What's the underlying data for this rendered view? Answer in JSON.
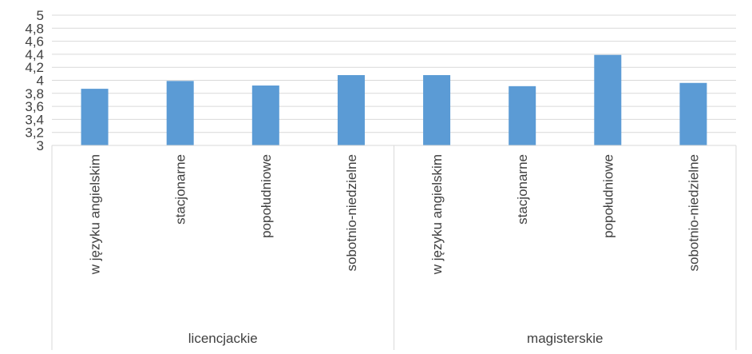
{
  "chart_data": {
    "type": "bar",
    "title": "",
    "xlabel": "",
    "ylabel": "",
    "ylim": [
      3,
      5
    ],
    "yticks": [
      "3",
      "3,2",
      "3,4",
      "3,6",
      "3,8",
      "4",
      "4,2",
      "4,4",
      "4,6",
      "4,8",
      "5"
    ],
    "grid": true,
    "legend": "none",
    "bar_color": "#5B9BD5",
    "groups": [
      {
        "label": "licencjackie",
        "categories": [
          "w języku angielskim",
          "stacjonarne",
          "popołudniowe",
          "sobotnio-niedzielne"
        ]
      },
      {
        "label": "magisterskie",
        "categories": [
          "w języku angielskim",
          "stacjonarne",
          "popołudniowe",
          "sobotnio-niedzielne"
        ]
      }
    ],
    "categories": [
      "w języku angielskim",
      "stacjonarne",
      "popołudniowe",
      "sobotnio-niedzielne",
      "w języku angielskim",
      "stacjonarne",
      "popołudniowe",
      "sobotnio-niedzielne"
    ],
    "values": [
      3.87,
      3.99,
      3.92,
      4.08,
      4.08,
      3.91,
      4.39,
      3.96
    ]
  }
}
